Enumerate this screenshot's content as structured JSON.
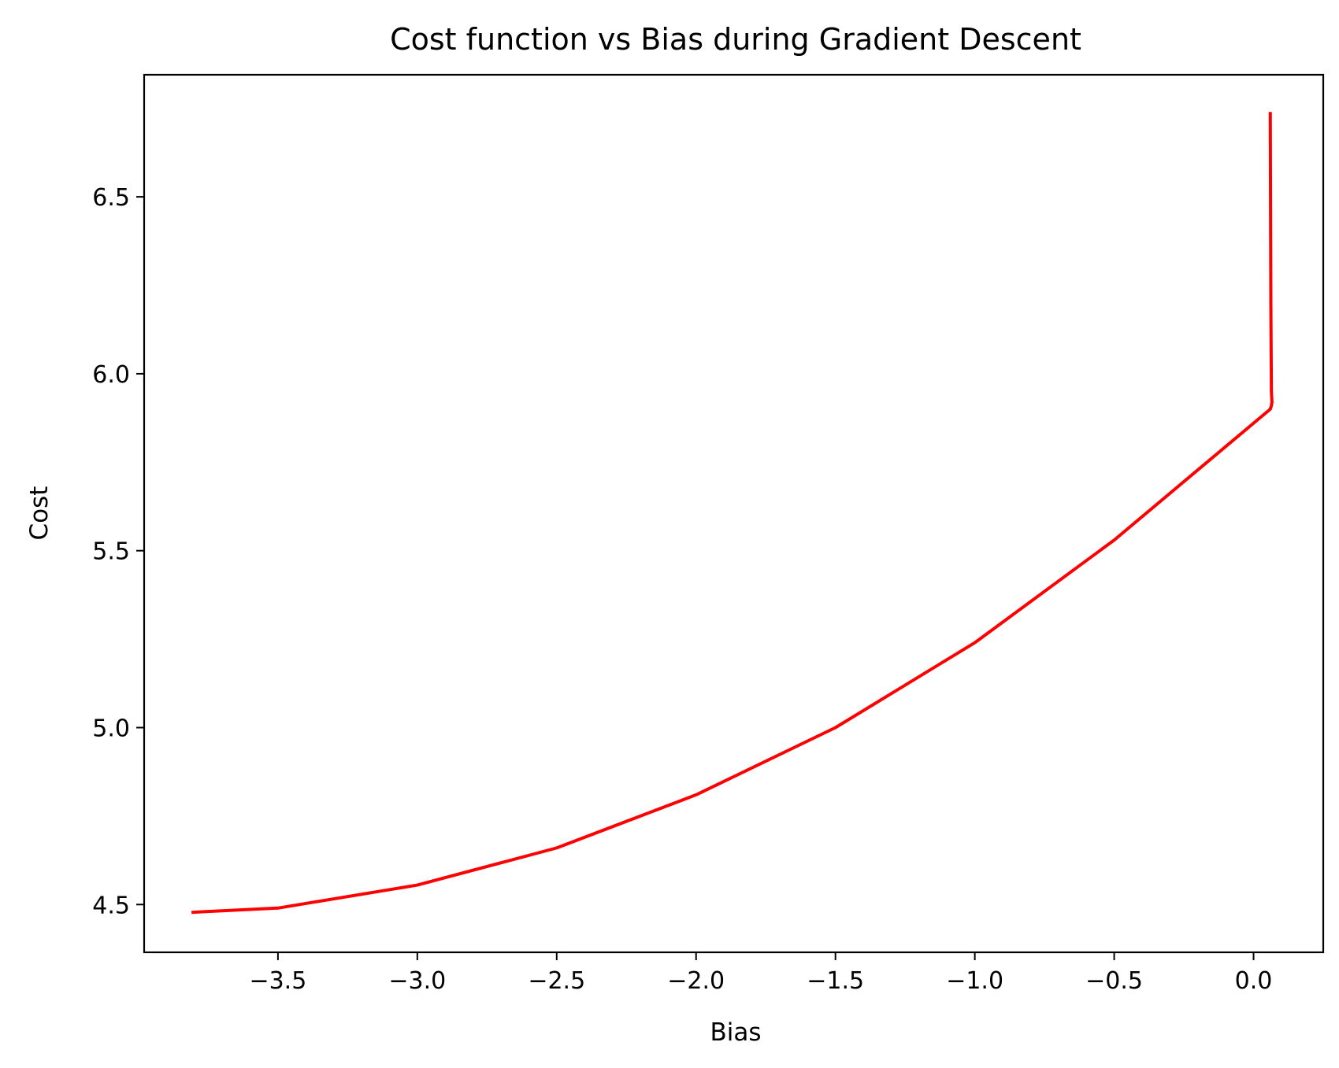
{
  "chart_data": {
    "type": "line",
    "title": "Cost function vs Bias during Gradient Descent",
    "xlabel": "Bias",
    "ylabel": "Cost",
    "xlim": [
      -3.98,
      0.25
    ],
    "ylim": [
      4.365,
      6.845
    ],
    "xticks": [
      -3.5,
      -3.0,
      -2.5,
      -2.0,
      -1.5,
      -1.0,
      -0.5,
      0.0
    ],
    "xtick_labels": [
      "−3.5",
      "−3.0",
      "−2.5",
      "−2.0",
      "−1.5",
      "−1.0",
      "−0.5",
      "0.0"
    ],
    "yticks": [
      4.5,
      5.0,
      5.5,
      6.0,
      6.5
    ],
    "ytick_labels": [
      "4.5",
      "5.0",
      "5.5",
      "6.0",
      "6.5"
    ],
    "grid": false,
    "legend": "none",
    "series": [
      {
        "color": "#ff0000",
        "x": [
          0.06,
          0.062,
          0.064,
          0.066,
          0.064,
          0.06,
          -0.5,
          -1.0,
          -1.5,
          -2.0,
          -2.5,
          -3.0,
          -3.5,
          -3.81
        ],
        "y": [
          6.74,
          6.2,
          5.95,
          5.92,
          5.91,
          5.9,
          5.53,
          5.24,
          5.0,
          4.81,
          4.66,
          4.555,
          4.49,
          4.478
        ]
      }
    ]
  }
}
